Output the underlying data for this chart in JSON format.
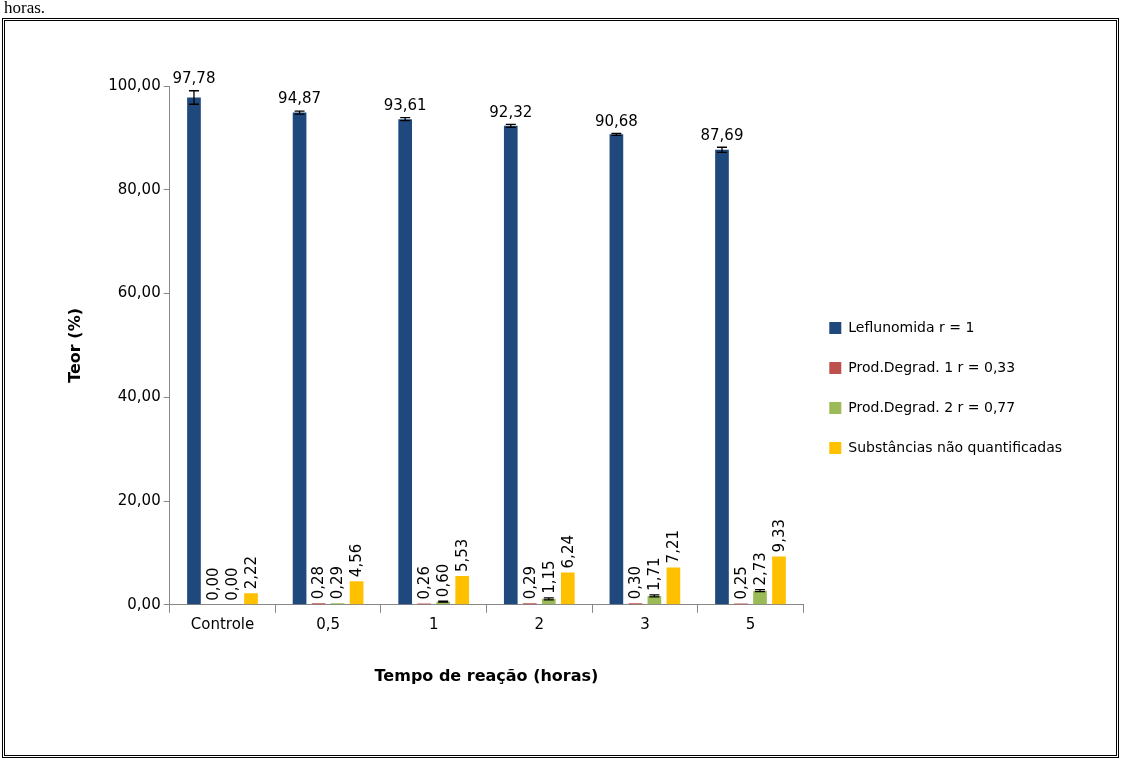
{
  "chart_data": {
    "type": "bar",
    "xlabel": "Tempo de reação (horas)",
    "ylabel": "Teor (%)",
    "annotations": [
      "horas."
    ],
    "categories": [
      "Controle",
      "0,5",
      "1",
      "2",
      "3",
      "5"
    ],
    "ylim": [
      0,
      100
    ],
    "yticks": [
      {
        "value": 0,
        "label": "0,00"
      },
      {
        "value": 20,
        "label": "20,00"
      },
      {
        "value": 40,
        "label": "40,00"
      },
      {
        "value": 60,
        "label": "60,00"
      },
      {
        "value": 80,
        "label": "80,00"
      },
      {
        "value": 100,
        "label": "100,00"
      }
    ],
    "grid": false,
    "legend": "right",
    "series": [
      {
        "name": "Leflunomida r = 1",
        "color": "#1f497d",
        "values": [
          97.78,
          94.87,
          93.61,
          92.32,
          90.68,
          87.69
        ],
        "errors": [
          1.3,
          0.3,
          0.3,
          0.3,
          0.2,
          0.5
        ],
        "value_labels": [
          "97,78",
          "94,87",
          "93,61",
          "92,32",
          "90,68",
          "87,69"
        ]
      },
      {
        "name": "Prod.Degrad. 1 r = 0,33",
        "color": "#c0504d",
        "values": [
          0,
          0.28,
          0.26,
          0.29,
          0.3,
          0.25
        ],
        "value_labels": [
          "0,00",
          "0,28",
          "0,26",
          "0,29",
          "0,30",
          "0,25"
        ]
      },
      {
        "name": "Prod.Degrad. 2 r = 0,77",
        "color": "#9bbb59",
        "values": [
          0,
          0.29,
          0.6,
          1.15,
          1.71,
          2.73
        ],
        "errors": [
          null,
          null,
          0.1,
          0.2,
          0.2,
          0.2
        ],
        "value_labels": [
          "0,00",
          "0,29",
          "0,60",
          "1,15",
          "1,71",
          "2,73"
        ]
      },
      {
        "name": "Substâncias não quantificadas",
        "color": "#ffc000",
        "values": [
          2.22,
          4.56,
          5.53,
          6.24,
          7.21,
          9.33
        ],
        "value_labels": [
          "2,22",
          "4,56",
          "5,53",
          "6,24",
          "7,21",
          "9,33"
        ]
      }
    ]
  }
}
